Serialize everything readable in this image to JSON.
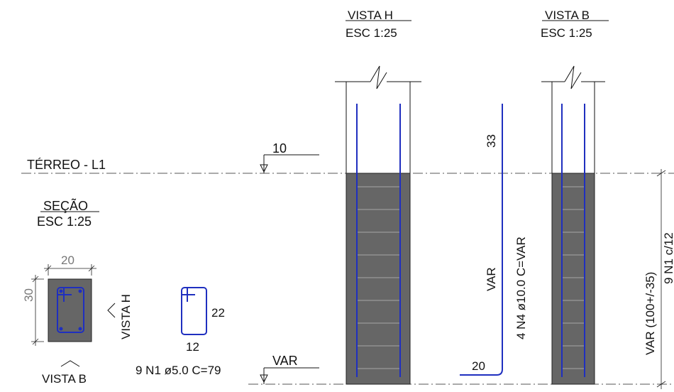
{
  "views": {
    "h": {
      "title": "VISTA H",
      "scale": "ESC 1:25"
    },
    "b": {
      "title": "VISTA B",
      "scale": "ESC 1:25"
    }
  },
  "level": {
    "name": "TÉRREO - L1",
    "top_mark": "10",
    "bottom_mark": "VAR"
  },
  "section": {
    "title": "SEÇÃO",
    "scale": "ESC 1:25",
    "width": "20",
    "height": "30",
    "view_h_label": "VISTA H",
    "view_b_label": "VISTA B"
  },
  "stirrup": {
    "dim_height": "22",
    "dim_width": "12",
    "spec": "9 N1 ø5.0  C=79"
  },
  "long_bar": {
    "top_length": "33",
    "middle_length": "VAR",
    "spec": "4 N4 ø10.0  C=VAR",
    "hook_length": "20"
  },
  "right_dim": {
    "label": "VAR (100+/-35)",
    "sub_label": "9 N1 c/12"
  },
  "colors": {
    "concrete": "#666666",
    "rebar": "#1f2fbf",
    "axis": "#555555"
  }
}
